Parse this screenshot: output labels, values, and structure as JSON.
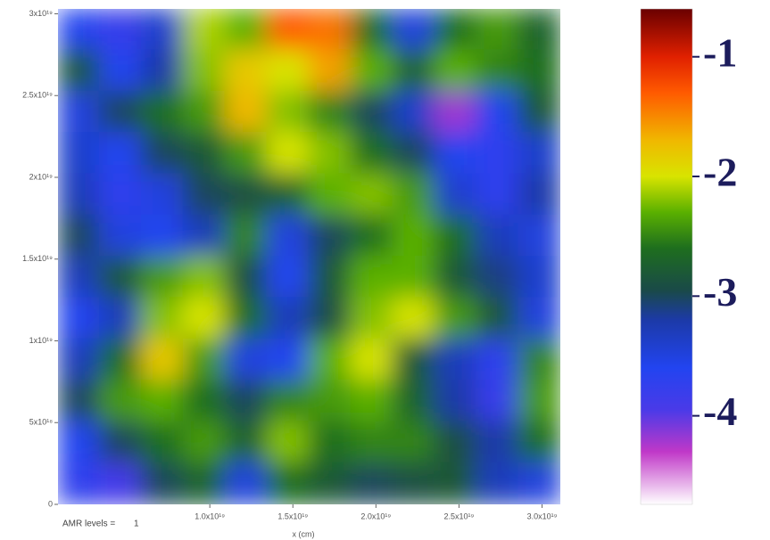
{
  "chart_data": {
    "type": "heatmap",
    "xlabel": "x (cm)",
    "xlim": [
      8.6e+17,
      3.11e+19
    ],
    "ylim": [
      0,
      3.03e+19
    ],
    "xticks": [
      {
        "value": 1e+19,
        "label": "1.0x10¹⁹"
      },
      {
        "value": 1.5e+19,
        "label": "1.5x10¹⁹"
      },
      {
        "value": 2e+19,
        "label": "2.0x10¹⁹"
      },
      {
        "value": 2.5e+19,
        "label": "2.5x10¹⁹"
      },
      {
        "value": 3e+19,
        "label": "3.0x10¹⁹"
      }
    ],
    "yticks": [
      0,
      {
        "value": 5e+18,
        "label": "5x10¹⁸"
      },
      {
        "value": 1e+19,
        "label": "1x10¹⁹"
      },
      {
        "value": 1.5e+19,
        "label": "1.5x10¹⁹"
      },
      {
        "value": 2e+19,
        "label": "2x10¹⁹"
      },
      {
        "value": 2.5e+19,
        "label": "2.5x10¹⁹"
      },
      {
        "value": 3e+19,
        "label": "3x10¹⁹"
      }
    ],
    "z": [
      [
        -3.6,
        -3.8,
        -3.4,
        -2.1,
        -2.3,
        -1.3,
        -1.4,
        -2.6,
        -3.5,
        -2.6,
        -2.4,
        -2.7
      ],
      [
        -2.8,
        -3.6,
        -3.2,
        -2.2,
        -1.8,
        -2.0,
        -1.6,
        -2.3,
        -2.7,
        -2.3,
        -2.5,
        -2.6
      ],
      [
        -3.5,
        -3.0,
        -2.6,
        -2.4,
        -1.7,
        -2.2,
        -2.5,
        -3.0,
        -3.4,
        -4.2,
        -3.6,
        -2.8
      ],
      [
        -3.4,
        -3.6,
        -3.0,
        -2.8,
        -2.4,
        -2.0,
        -2.2,
        -2.6,
        -3.0,
        -3.6,
        -3.7,
        -3.4
      ],
      [
        -3.3,
        -3.7,
        -3.5,
        -3.0,
        -2.9,
        -2.7,
        -2.3,
        -2.2,
        -2.4,
        -3.4,
        -3.7,
        -3.2
      ],
      [
        -3.0,
        -3.5,
        -3.6,
        -3.3,
        -2.5,
        -3.5,
        -3.0,
        -2.6,
        -2.3,
        -2.6,
        -3.3,
        -3.5
      ],
      [
        -3.3,
        -2.8,
        -2.4,
        -2.2,
        -2.9,
        -3.6,
        -2.8,
        -2.3,
        -2.3,
        -2.8,
        -3.1,
        -3.4
      ],
      [
        -3.6,
        -3.3,
        -2.2,
        -2.0,
        -2.6,
        -3.3,
        -2.9,
        -2.2,
        -2.0,
        -2.4,
        -2.8,
        -3.5
      ],
      [
        -3.3,
        -2.6,
        -1.8,
        -2.4,
        -3.5,
        -3.6,
        -2.3,
        -2.0,
        -2.8,
        -3.3,
        -3.7,
        -2.5
      ],
      [
        -3.0,
        -2.4,
        -2.3,
        -2.6,
        -3.0,
        -2.5,
        -2.4,
        -2.3,
        -2.7,
        -3.2,
        -3.8,
        -2.4
      ],
      [
        -3.6,
        -3.0,
        -2.6,
        -2.4,
        -2.7,
        -2.2,
        -2.6,
        -2.5,
        -2.5,
        -2.9,
        -3.2,
        -2.6
      ],
      [
        -3.7,
        -3.9,
        -3.0,
        -2.7,
        -3.5,
        -2.6,
        -2.8,
        -3.0,
        -2.9,
        -2.8,
        -3.3,
        -3.5
      ]
    ],
    "colorbar": {
      "lim": [
        -4.74,
        -0.6
      ],
      "ticks": [
        -1,
        -2,
        -3,
        -4
      ]
    },
    "colormap": [
      {
        "value": -4.74,
        "color": "#ffffff"
      },
      {
        "value": -4.3,
        "color": "#c038c8"
      },
      {
        "value": -3.95,
        "color": "#4a3ae8"
      },
      {
        "value": -3.6,
        "color": "#2244f0"
      },
      {
        "value": -3.2,
        "color": "#1c3aa8"
      },
      {
        "value": -2.95,
        "color": "#1a4a48"
      },
      {
        "value": -2.6,
        "color": "#1e6e1e"
      },
      {
        "value": -2.3,
        "color": "#5ab000"
      },
      {
        "value": -2.0,
        "color": "#d8e400"
      },
      {
        "value": -1.7,
        "color": "#f0b800"
      },
      {
        "value": -1.3,
        "color": "#ff5a00"
      },
      {
        "value": -1.0,
        "color": "#e02000"
      },
      {
        "value": -0.6,
        "color": "#6a0000"
      }
    ],
    "annotations": [
      "AMR levels =",
      "1"
    ]
  }
}
